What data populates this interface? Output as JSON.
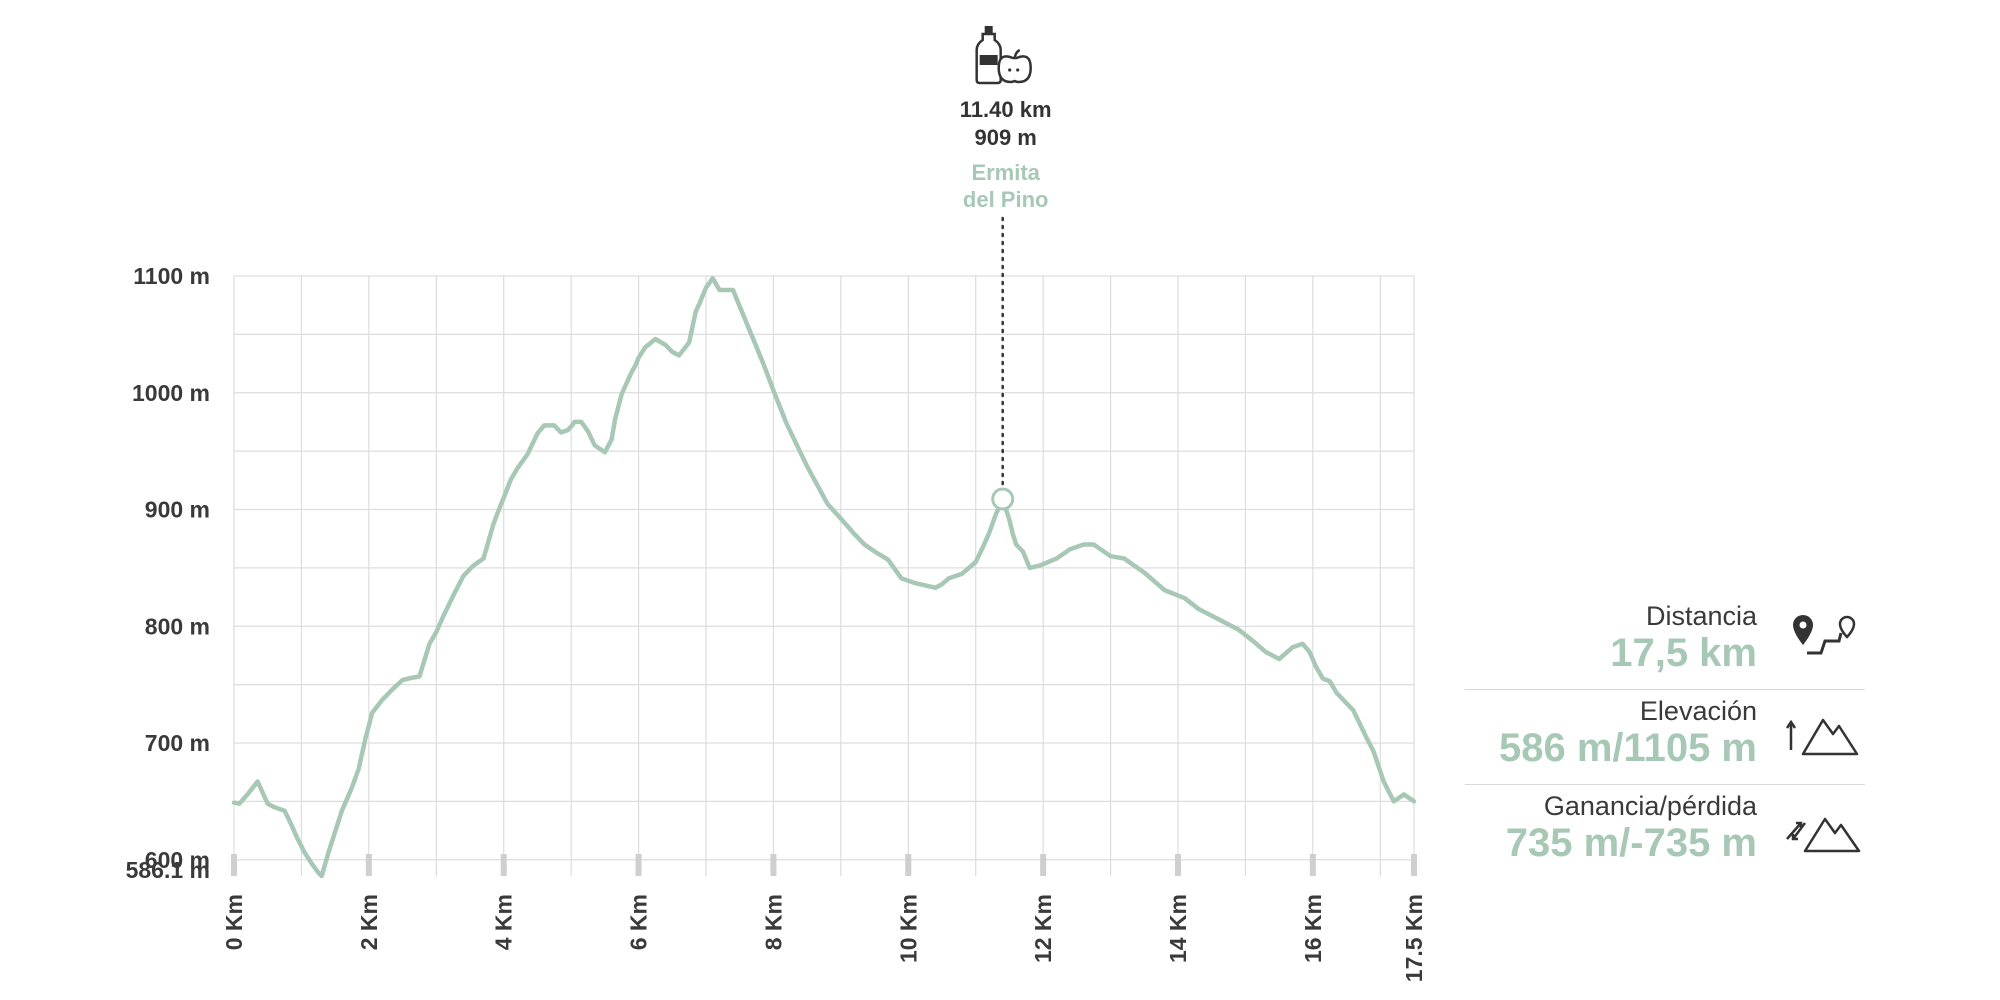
{
  "chart_data": {
    "type": "area",
    "xlabel": "",
    "ylabel": "",
    "x_unit": "Km",
    "y_unit": "m",
    "xlim": [
      0,
      17.5
    ],
    "ylim": [
      586.1,
      1100
    ],
    "grid": true,
    "line_color": "#a8c8b6",
    "x_ticks": [
      "0 Km",
      "2 Km",
      "4 Km",
      "6 Km",
      "8 Km",
      "10 Km",
      "12 Km",
      "14 Km",
      "16 Km",
      "17.5 Km"
    ],
    "y_ticks": [
      "1100 m",
      "1000 m",
      "900 m",
      "800 m",
      "700 m",
      "600 m",
      "586.1 m"
    ],
    "x": [
      0,
      0.08,
      0.2,
      0.35,
      0.5,
      0.6,
      0.75,
      0.85,
      0.95,
      1.05,
      1.15,
      1.25,
      1.3,
      1.4,
      1.5,
      1.6,
      1.75,
      1.85,
      1.95,
      2.05,
      2.2,
      2.35,
      2.5,
      2.65,
      2.75,
      2.9,
      3.0,
      3.1,
      3.25,
      3.4,
      3.55,
      3.7,
      3.85,
      3.95,
      4.0,
      4.1,
      4.2,
      4.35,
      4.5,
      4.6,
      4.75,
      4.85,
      4.95,
      5.0,
      5.05,
      5.15,
      5.25,
      5.35,
      5.5,
      5.6,
      5.65,
      5.75,
      5.9,
      5.95,
      6.0,
      6.1,
      6.25,
      6.4,
      6.5,
      6.6,
      6.75,
      6.85,
      6.9,
      6.95,
      7.0,
      7.1,
      7.2,
      7.4,
      7.5,
      7.6,
      7.7,
      7.85,
      8.0,
      8.2,
      8.5,
      8.8,
      9.05,
      9.2,
      9.35,
      9.5,
      9.7,
      9.9,
      10.1,
      10.4,
      10.5,
      10.6,
      10.8,
      11.0,
      11.1,
      11.2,
      11.3,
      11.4,
      11.5,
      11.55,
      11.6,
      11.7,
      11.8,
      11.95,
      12.2,
      12.4,
      12.6,
      12.75,
      12.85,
      13.0,
      13.2,
      13.5,
      13.8,
      14.1,
      14.3,
      14.6,
      14.9,
      15.1,
      15.3,
      15.5,
      15.7,
      15.85,
      15.95,
      16.05,
      16.15,
      16.25,
      16.35,
      16.6,
      16.8,
      16.9,
      17.05,
      17.2,
      17.35,
      17.5
    ],
    "y": [
      649,
      648,
      656,
      667,
      648,
      645,
      642,
      630,
      617,
      606,
      597,
      589,
      586.1,
      606,
      624,
      642,
      662,
      678,
      704,
      726,
      737,
      746,
      754,
      756,
      757,
      785,
      795,
      808,
      826,
      843,
      852,
      858,
      888,
      903,
      910,
      925,
      935,
      947,
      965,
      972,
      972,
      966,
      968,
      971,
      975,
      975,
      967,
      955,
      949,
      960,
      977,
      999,
      1018,
      1023,
      1030,
      1039,
      1046,
      1041,
      1035,
      1032,
      1043,
      1070,
      1076,
      1083,
      1090,
      1098,
      1088,
      1088,
      1074,
      1060,
      1046,
      1025,
      1002,
      973,
      937,
      905,
      889,
      879,
      870,
      864,
      857,
      841,
      837,
      833,
      836,
      841,
      845,
      855,
      867,
      880,
      896,
      909,
      891,
      879,
      870,
      864,
      850,
      852,
      858,
      866,
      870,
      870,
      866,
      860,
      858,
      846,
      831,
      824,
      815,
      806,
      797,
      788,
      778,
      772,
      782,
      785,
      778,
      765,
      755,
      753,
      743,
      728,
      704,
      693,
      667,
      650,
      656,
      650
    ],
    "waypoint": {
      "distance_label": "11.40 km",
      "elevation_label": "909 m",
      "name": "Ermita del Pino",
      "name_line1": "Ermita",
      "name_line2": "del Pino",
      "x": 11.4,
      "y": 909,
      "icon": "water-food-icon"
    }
  },
  "stats": [
    {
      "label": "Distancia",
      "value": "17,5 km",
      "icon": "route-distance-icon"
    },
    {
      "label": "Elevación",
      "value": "586 m/1105 m",
      "icon": "elevation-mountain-icon"
    },
    {
      "label": "Ganancia/pérdida",
      "value": "735 m/-735 m",
      "icon": "gain-loss-mountain-icon"
    }
  ],
  "colors": {
    "accent": "#a8c8b6",
    "grid": "#dddddd",
    "text": "#3a3a3a"
  }
}
